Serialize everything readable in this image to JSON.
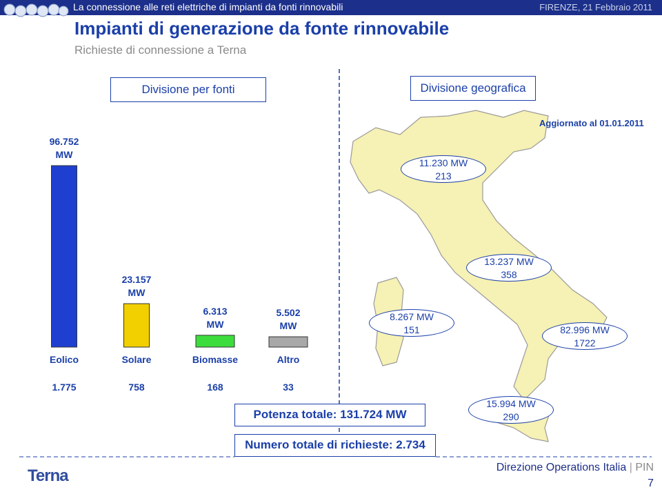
{
  "header": {
    "banner": "La connessione alle reti elettriche di impianti da fonti rinnovabili",
    "place_date": "FIRENZE, 21 Febbraio 2011",
    "title": "Impianti di generazione da fonte rinnovabile",
    "subtitle": "Richieste di connessione a Terna"
  },
  "tabs": [
    "Divisione per fonti",
    "Divisione geografica"
  ],
  "chart_data": {
    "type": "bar",
    "categories": [
      "Eolico",
      "Solare",
      "Biomasse",
      "Altro"
    ],
    "values": [
      96752,
      23157,
      6313,
      5502
    ],
    "value_labels": [
      "96.752 MW",
      "23.157 MW",
      "6.313 MW",
      "5.502 MW"
    ],
    "colors": [
      "#1f3fd0",
      "#f2d000",
      "#3ddc3d",
      "#a8a8a8"
    ],
    "counts": [
      "1.775",
      "758",
      "168",
      "33"
    ]
  },
  "map": {
    "updated": "Aggiornato al 01.01.2011",
    "regions": [
      {
        "power": "11.230 MW",
        "requests": "213"
      },
      {
        "power": "13.237 MW",
        "requests": "358"
      },
      {
        "power": "8.267 MW",
        "requests": "151"
      },
      {
        "power": "82.996 MW",
        "requests": "1722"
      },
      {
        "power": "15.994 MW",
        "requests": "290"
      }
    ]
  },
  "totals": {
    "power": "Potenza totale:  131.724 MW",
    "requests": "Numero totale di richieste: 2.734"
  },
  "footer": {
    "logo": "Terna",
    "department": "Direzione Operations Italia",
    "unit": "PIN",
    "page": "7"
  }
}
